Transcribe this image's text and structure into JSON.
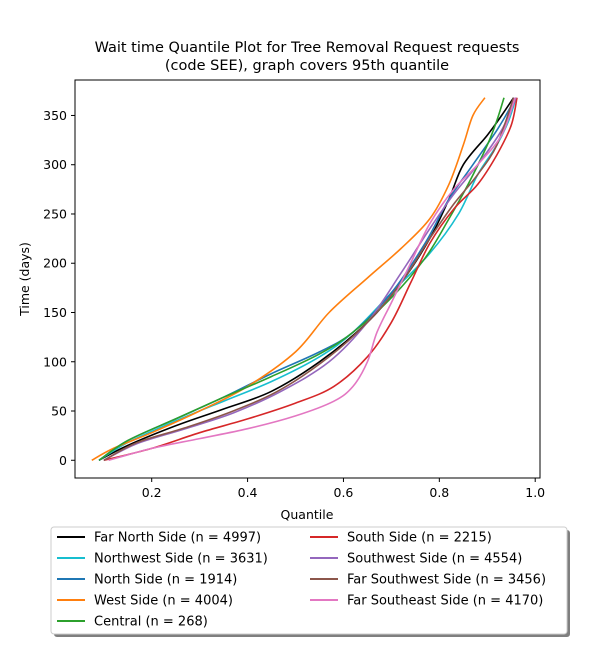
{
  "chart_data": {
    "type": "line",
    "title_lines": [
      "Wait time Quantile Plot for Tree Removal Request  requests",
      "(code SEE), graph covers 95th quantile"
    ],
    "xlabel": "Quantile",
    "ylabel": "Time (days)",
    "xlim": [
      0.04,
      1.01
    ],
    "ylim": [
      -18,
      386
    ],
    "x_ticks": [
      0.2,
      0.4,
      0.6,
      0.8,
      1.0
    ],
    "x_tick_labels": [
      "0.2",
      "0.4",
      "0.6",
      "0.8",
      "1.0"
    ],
    "y_ticks": [
      0,
      50,
      100,
      150,
      200,
      250,
      300,
      350
    ],
    "y_tick_labels": [
      "0",
      "50",
      "100",
      "150",
      "200",
      "250",
      "300",
      "350"
    ],
    "grid": false,
    "legend_placement": "below",
    "series": [
      {
        "name": "Far North Side (n = 4997)",
        "color": "#000000",
        "points": [
          [
            0.09,
            0
          ],
          [
            0.15,
            15
          ],
          [
            0.25,
            35
          ],
          [
            0.35,
            52
          ],
          [
            0.45,
            70
          ],
          [
            0.55,
            100
          ],
          [
            0.65,
            140
          ],
          [
            0.72,
            180
          ],
          [
            0.78,
            225
          ],
          [
            0.82,
            265
          ],
          [
            0.85,
            300
          ],
          [
            0.9,
            330
          ],
          [
            0.93,
            350
          ],
          [
            0.955,
            368
          ]
        ]
      },
      {
        "name": "Northwest Side (n = 3631)",
        "color": "#17becf",
        "points": [
          [
            0.09,
            0
          ],
          [
            0.15,
            18
          ],
          [
            0.25,
            40
          ],
          [
            0.35,
            60
          ],
          [
            0.45,
            80
          ],
          [
            0.55,
            105
          ],
          [
            0.62,
            130
          ],
          [
            0.7,
            170
          ],
          [
            0.78,
            210
          ],
          [
            0.84,
            250
          ],
          [
            0.88,
            290
          ],
          [
            0.92,
            320
          ],
          [
            0.945,
            345
          ],
          [
            0.96,
            368
          ]
        ]
      },
      {
        "name": "North Side (n = 1914)",
        "color": "#1f77b4",
        "points": [
          [
            0.09,
            0
          ],
          [
            0.15,
            20
          ],
          [
            0.25,
            42
          ],
          [
            0.35,
            64
          ],
          [
            0.45,
            88
          ],
          [
            0.55,
            110
          ],
          [
            0.62,
            130
          ],
          [
            0.7,
            170
          ],
          [
            0.77,
            220
          ],
          [
            0.82,
            265
          ],
          [
            0.87,
            300
          ],
          [
            0.92,
            335
          ],
          [
            0.95,
            360
          ],
          [
            0.955,
            368
          ]
        ]
      },
      {
        "name": "West Side (n = 4004)",
        "color": "#ff7f0e",
        "points": [
          [
            0.075,
            0
          ],
          [
            0.12,
            12
          ],
          [
            0.2,
            28
          ],
          [
            0.3,
            50
          ],
          [
            0.4,
            75
          ],
          [
            0.5,
            110
          ],
          [
            0.57,
            150
          ],
          [
            0.65,
            185
          ],
          [
            0.72,
            215
          ],
          [
            0.78,
            245
          ],
          [
            0.82,
            280
          ],
          [
            0.85,
            320
          ],
          [
            0.87,
            350
          ],
          [
            0.895,
            368
          ]
        ]
      },
      {
        "name": "Central (n = 268)",
        "color": "#2ca02c",
        "points": [
          [
            0.09,
            0
          ],
          [
            0.15,
            20
          ],
          [
            0.25,
            42
          ],
          [
            0.35,
            64
          ],
          [
            0.45,
            85
          ],
          [
            0.55,
            108
          ],
          [
            0.62,
            130
          ],
          [
            0.7,
            165
          ],
          [
            0.77,
            205
          ],
          [
            0.82,
            245
          ],
          [
            0.86,
            280
          ],
          [
            0.9,
            320
          ],
          [
            0.92,
            345
          ],
          [
            0.935,
            368
          ]
        ]
      },
      {
        "name": "South Side (n = 2215)",
        "color": "#d62728",
        "points": [
          [
            0.1,
            0
          ],
          [
            0.2,
            12
          ],
          [
            0.3,
            28
          ],
          [
            0.4,
            42
          ],
          [
            0.5,
            58
          ],
          [
            0.58,
            75
          ],
          [
            0.65,
            105
          ],
          [
            0.7,
            140
          ],
          [
            0.74,
            180
          ],
          [
            0.78,
            220
          ],
          [
            0.83,
            255
          ],
          [
            0.88,
            280
          ],
          [
            0.92,
            310
          ],
          [
            0.95,
            340
          ],
          [
            0.962,
            368
          ]
        ]
      },
      {
        "name": "Southwest Side (n = 4554)",
        "color": "#9467bd",
        "points": [
          [
            0.1,
            0
          ],
          [
            0.17,
            17
          ],
          [
            0.27,
            32
          ],
          [
            0.37,
            48
          ],
          [
            0.47,
            70
          ],
          [
            0.57,
            100
          ],
          [
            0.65,
            140
          ],
          [
            0.72,
            190
          ],
          [
            0.78,
            235
          ],
          [
            0.83,
            270
          ],
          [
            0.88,
            300
          ],
          [
            0.93,
            335
          ],
          [
            0.96,
            368
          ]
        ]
      },
      {
        "name": "Far Southwest Side (n = 3456)",
        "color": "#8c564b",
        "points": [
          [
            0.1,
            0
          ],
          [
            0.17,
            18
          ],
          [
            0.27,
            33
          ],
          [
            0.37,
            50
          ],
          [
            0.47,
            72
          ],
          [
            0.57,
            105
          ],
          [
            0.65,
            140
          ],
          [
            0.72,
            180
          ],
          [
            0.78,
            225
          ],
          [
            0.83,
            260
          ],
          [
            0.88,
            290
          ],
          [
            0.92,
            320
          ],
          [
            0.955,
            368
          ]
        ]
      },
      {
        "name": "Far Southeast Side (n = 4170)",
        "color": "#e377c2",
        "points": [
          [
            0.11,
            0
          ],
          [
            0.2,
            12
          ],
          [
            0.3,
            22
          ],
          [
            0.4,
            32
          ],
          [
            0.5,
            45
          ],
          [
            0.58,
            60
          ],
          [
            0.62,
            75
          ],
          [
            0.65,
            100
          ],
          [
            0.67,
            130
          ],
          [
            0.7,
            160
          ],
          [
            0.74,
            200
          ],
          [
            0.78,
            240
          ],
          [
            0.83,
            275
          ],
          [
            0.88,
            300
          ],
          [
            0.93,
            330
          ],
          [
            0.958,
            368
          ]
        ]
      }
    ]
  }
}
